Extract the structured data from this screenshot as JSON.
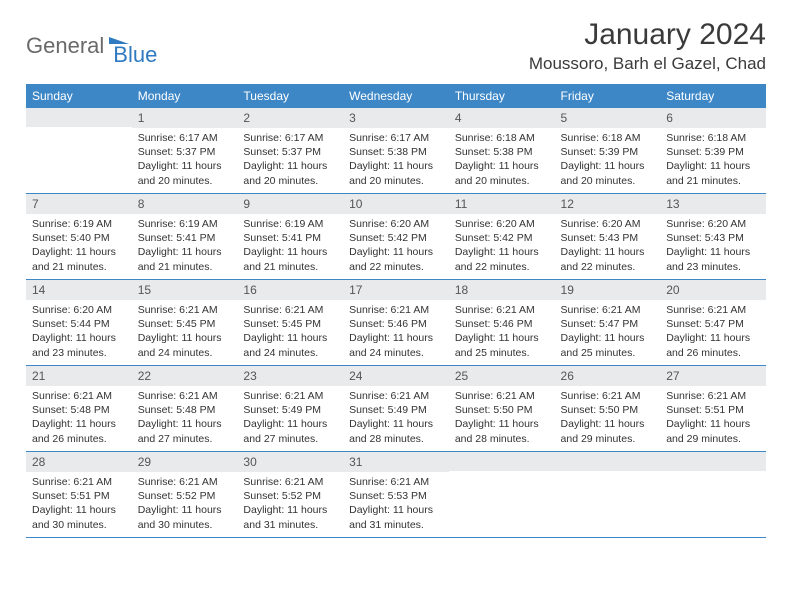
{
  "brand": {
    "text1": "General",
    "text2": "Blue"
  },
  "title": "January 2024",
  "location": "Moussoro, Barh el Gazel, Chad",
  "colors": {
    "header_bg": "#3d87c7",
    "header_text": "#ffffff",
    "daynum_bg": "#e9eaeb",
    "row_border": "#3d87c7",
    "brand_gray": "#6a6a6a",
    "brand_blue": "#2f7ac0"
  },
  "typography": {
    "title_fontsize": 30,
    "location_fontsize": 17,
    "dayhead_fontsize": 12,
    "body_fontsize": 10.5
  },
  "day_headers": [
    "Sunday",
    "Monday",
    "Tuesday",
    "Wednesday",
    "Thursday",
    "Friday",
    "Saturday"
  ],
  "weeks": [
    [
      {
        "blank": true
      },
      {
        "n": "1",
        "sr": "Sunrise: 6:17 AM",
        "ss": "Sunset: 5:37 PM",
        "d1": "Daylight: 11 hours",
        "d2": "and 20 minutes."
      },
      {
        "n": "2",
        "sr": "Sunrise: 6:17 AM",
        "ss": "Sunset: 5:37 PM",
        "d1": "Daylight: 11 hours",
        "d2": "and 20 minutes."
      },
      {
        "n": "3",
        "sr": "Sunrise: 6:17 AM",
        "ss": "Sunset: 5:38 PM",
        "d1": "Daylight: 11 hours",
        "d2": "and 20 minutes."
      },
      {
        "n": "4",
        "sr": "Sunrise: 6:18 AM",
        "ss": "Sunset: 5:38 PM",
        "d1": "Daylight: 11 hours",
        "d2": "and 20 minutes."
      },
      {
        "n": "5",
        "sr": "Sunrise: 6:18 AM",
        "ss": "Sunset: 5:39 PM",
        "d1": "Daylight: 11 hours",
        "d2": "and 20 minutes."
      },
      {
        "n": "6",
        "sr": "Sunrise: 6:18 AM",
        "ss": "Sunset: 5:39 PM",
        "d1": "Daylight: 11 hours",
        "d2": "and 21 minutes."
      }
    ],
    [
      {
        "n": "7",
        "sr": "Sunrise: 6:19 AM",
        "ss": "Sunset: 5:40 PM",
        "d1": "Daylight: 11 hours",
        "d2": "and 21 minutes."
      },
      {
        "n": "8",
        "sr": "Sunrise: 6:19 AM",
        "ss": "Sunset: 5:41 PM",
        "d1": "Daylight: 11 hours",
        "d2": "and 21 minutes."
      },
      {
        "n": "9",
        "sr": "Sunrise: 6:19 AM",
        "ss": "Sunset: 5:41 PM",
        "d1": "Daylight: 11 hours",
        "d2": "and 21 minutes."
      },
      {
        "n": "10",
        "sr": "Sunrise: 6:20 AM",
        "ss": "Sunset: 5:42 PM",
        "d1": "Daylight: 11 hours",
        "d2": "and 22 minutes."
      },
      {
        "n": "11",
        "sr": "Sunrise: 6:20 AM",
        "ss": "Sunset: 5:42 PM",
        "d1": "Daylight: 11 hours",
        "d2": "and 22 minutes."
      },
      {
        "n": "12",
        "sr": "Sunrise: 6:20 AM",
        "ss": "Sunset: 5:43 PM",
        "d1": "Daylight: 11 hours",
        "d2": "and 22 minutes."
      },
      {
        "n": "13",
        "sr": "Sunrise: 6:20 AM",
        "ss": "Sunset: 5:43 PM",
        "d1": "Daylight: 11 hours",
        "d2": "and 23 minutes."
      }
    ],
    [
      {
        "n": "14",
        "sr": "Sunrise: 6:20 AM",
        "ss": "Sunset: 5:44 PM",
        "d1": "Daylight: 11 hours",
        "d2": "and 23 minutes."
      },
      {
        "n": "15",
        "sr": "Sunrise: 6:21 AM",
        "ss": "Sunset: 5:45 PM",
        "d1": "Daylight: 11 hours",
        "d2": "and 24 minutes."
      },
      {
        "n": "16",
        "sr": "Sunrise: 6:21 AM",
        "ss": "Sunset: 5:45 PM",
        "d1": "Daylight: 11 hours",
        "d2": "and 24 minutes."
      },
      {
        "n": "17",
        "sr": "Sunrise: 6:21 AM",
        "ss": "Sunset: 5:46 PM",
        "d1": "Daylight: 11 hours",
        "d2": "and 24 minutes."
      },
      {
        "n": "18",
        "sr": "Sunrise: 6:21 AM",
        "ss": "Sunset: 5:46 PM",
        "d1": "Daylight: 11 hours",
        "d2": "and 25 minutes."
      },
      {
        "n": "19",
        "sr": "Sunrise: 6:21 AM",
        "ss": "Sunset: 5:47 PM",
        "d1": "Daylight: 11 hours",
        "d2": "and 25 minutes."
      },
      {
        "n": "20",
        "sr": "Sunrise: 6:21 AM",
        "ss": "Sunset: 5:47 PM",
        "d1": "Daylight: 11 hours",
        "d2": "and 26 minutes."
      }
    ],
    [
      {
        "n": "21",
        "sr": "Sunrise: 6:21 AM",
        "ss": "Sunset: 5:48 PM",
        "d1": "Daylight: 11 hours",
        "d2": "and 26 minutes."
      },
      {
        "n": "22",
        "sr": "Sunrise: 6:21 AM",
        "ss": "Sunset: 5:48 PM",
        "d1": "Daylight: 11 hours",
        "d2": "and 27 minutes."
      },
      {
        "n": "23",
        "sr": "Sunrise: 6:21 AM",
        "ss": "Sunset: 5:49 PM",
        "d1": "Daylight: 11 hours",
        "d2": "and 27 minutes."
      },
      {
        "n": "24",
        "sr": "Sunrise: 6:21 AM",
        "ss": "Sunset: 5:49 PM",
        "d1": "Daylight: 11 hours",
        "d2": "and 28 minutes."
      },
      {
        "n": "25",
        "sr": "Sunrise: 6:21 AM",
        "ss": "Sunset: 5:50 PM",
        "d1": "Daylight: 11 hours",
        "d2": "and 28 minutes."
      },
      {
        "n": "26",
        "sr": "Sunrise: 6:21 AM",
        "ss": "Sunset: 5:50 PM",
        "d1": "Daylight: 11 hours",
        "d2": "and 29 minutes."
      },
      {
        "n": "27",
        "sr": "Sunrise: 6:21 AM",
        "ss": "Sunset: 5:51 PM",
        "d1": "Daylight: 11 hours",
        "d2": "and 29 minutes."
      }
    ],
    [
      {
        "n": "28",
        "sr": "Sunrise: 6:21 AM",
        "ss": "Sunset: 5:51 PM",
        "d1": "Daylight: 11 hours",
        "d2": "and 30 minutes."
      },
      {
        "n": "29",
        "sr": "Sunrise: 6:21 AM",
        "ss": "Sunset: 5:52 PM",
        "d1": "Daylight: 11 hours",
        "d2": "and 30 minutes."
      },
      {
        "n": "30",
        "sr": "Sunrise: 6:21 AM",
        "ss": "Sunset: 5:52 PM",
        "d1": "Daylight: 11 hours",
        "d2": "and 31 minutes."
      },
      {
        "n": "31",
        "sr": "Sunrise: 6:21 AM",
        "ss": "Sunset: 5:53 PM",
        "d1": "Daylight: 11 hours",
        "d2": "and 31 minutes."
      },
      {
        "blank": true
      },
      {
        "blank": true
      },
      {
        "blank": true
      }
    ]
  ]
}
